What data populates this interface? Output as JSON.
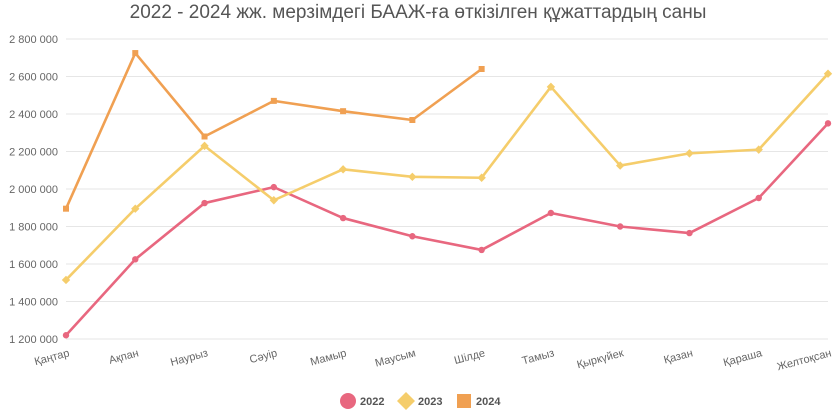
{
  "chart_data": {
    "type": "line",
    "title": "2022 - 2024 жж. мерзімдегі БААЖ-ға өткізілген құжаттардың саны",
    "categories": [
      "Қаңтар",
      "Ақпан",
      "Наурыз",
      "Сәуір",
      "Мамыр",
      "Маусым",
      "Шілде",
      "Тамыз",
      "Қыркүйек",
      "Қазан",
      "Қараша",
      "Желтоқсан"
    ],
    "series": [
      {
        "name": "2022",
        "color": "#e8677f",
        "marker": "circle",
        "values": [
          1220000,
          1625000,
          1925000,
          2010000,
          1845000,
          1748000,
          1675000,
          1872000,
          1800000,
          1765000,
          1952000,
          2350000
        ]
      },
      {
        "name": "2023",
        "color": "#f5cd6b",
        "marker": "diamond",
        "values": [
          1515000,
          1895000,
          2230000,
          1940000,
          2105000,
          2065000,
          2060000,
          2545000,
          2125000,
          2190000,
          2210000,
          2615000
        ]
      },
      {
        "name": "2024",
        "color": "#f0a052",
        "marker": "square",
        "values": [
          1895000,
          2725000,
          2280000,
          2470000,
          2415000,
          2368000,
          2640000,
          null,
          null,
          null,
          null,
          null
        ]
      }
    ],
    "yticks": [
      "1 200 000",
      "1 400 000",
      "1 600 000",
      "1 800 000",
      "2 000 000",
      "2 200 000",
      "2 400 000",
      "2 600 000",
      "2 800 000"
    ],
    "ytick_values": [
      1200000,
      1400000,
      1600000,
      1800000,
      2000000,
      2200000,
      2400000,
      2600000,
      2800000
    ],
    "ylim": [
      1200000,
      2800000
    ],
    "grid": true,
    "legend_position": "bottom-center"
  }
}
